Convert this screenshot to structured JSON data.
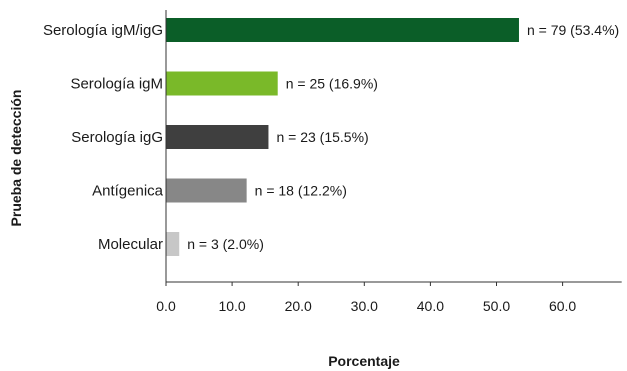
{
  "chart_data": {
    "type": "bar",
    "orientation": "horizontal",
    "categories": [
      "Serología igM/igG",
      "Serología igM",
      "Serología igG",
      "Antígenica",
      "Molecular"
    ],
    "values": [
      53.4,
      16.9,
      15.5,
      12.2,
      2.0
    ],
    "data_labels": [
      "n = 79 (53.4%)",
      "n = 25 (16.9%)",
      "n = 23 (15.5%)",
      "n = 18 (12.2%)",
      "n = 3 (2.0%)"
    ],
    "bar_colors": [
      "#0b5e28",
      "#7ab929",
      "#3f3f3f",
      "#878787",
      "#c7c7c7"
    ],
    "xlabel": "Porcentaje",
    "ylabel": "Prueba de detección",
    "xlim": [
      0,
      70
    ],
    "xticks": [
      0,
      10,
      20,
      30,
      40,
      50,
      60
    ],
    "xtick_labels": [
      "0.0",
      "10.0",
      "20.0",
      "30.0",
      "40.0",
      "50.0",
      "60.0"
    ],
    "grid": false,
    "legend": "none"
  }
}
